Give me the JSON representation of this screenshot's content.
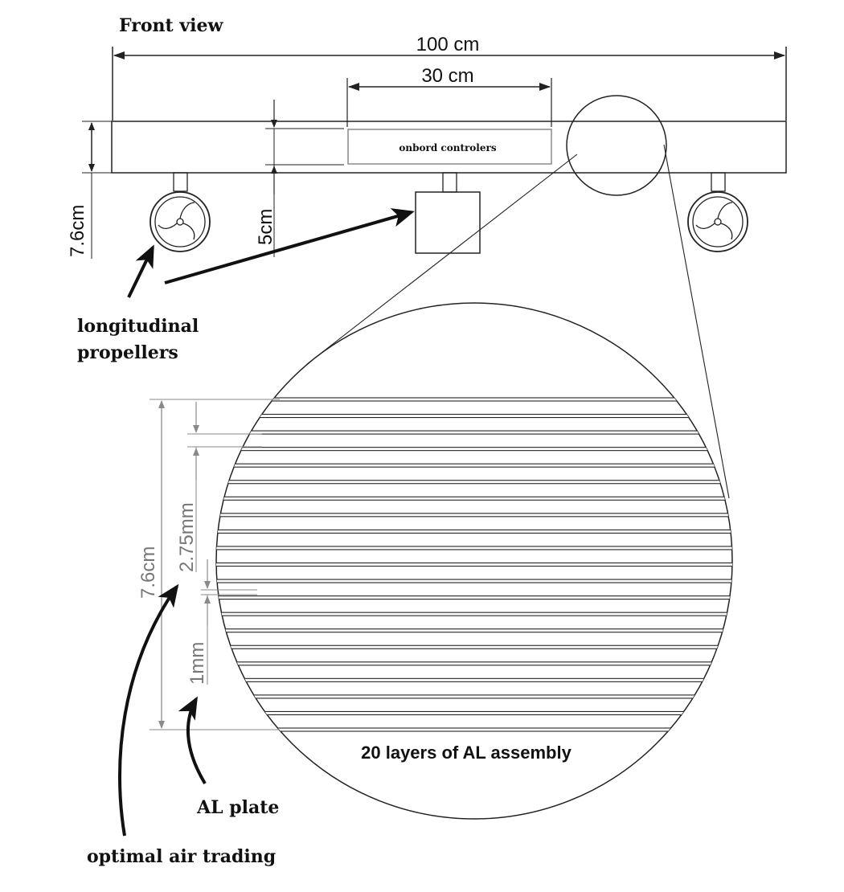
{
  "title": "Front view",
  "dimensions": {
    "total_length": "100 cm",
    "controller_length": "30 cm",
    "beam_height": "7.6cm",
    "controller_offset": "5cm"
  },
  "labels": {
    "onboard_controllers": "onbord controlers",
    "propellers": [
      "longitudinal",
      "propellers"
    ],
    "assembly": "20 layers of AL assembly",
    "al_plate": "AL plate",
    "air_gap": "optimal air trading"
  },
  "detail_dimensions": {
    "stack_height": "7.6cm",
    "gap": "2.75mm",
    "plate": "1mm"
  },
  "assembly": {
    "layer_count": 20
  }
}
